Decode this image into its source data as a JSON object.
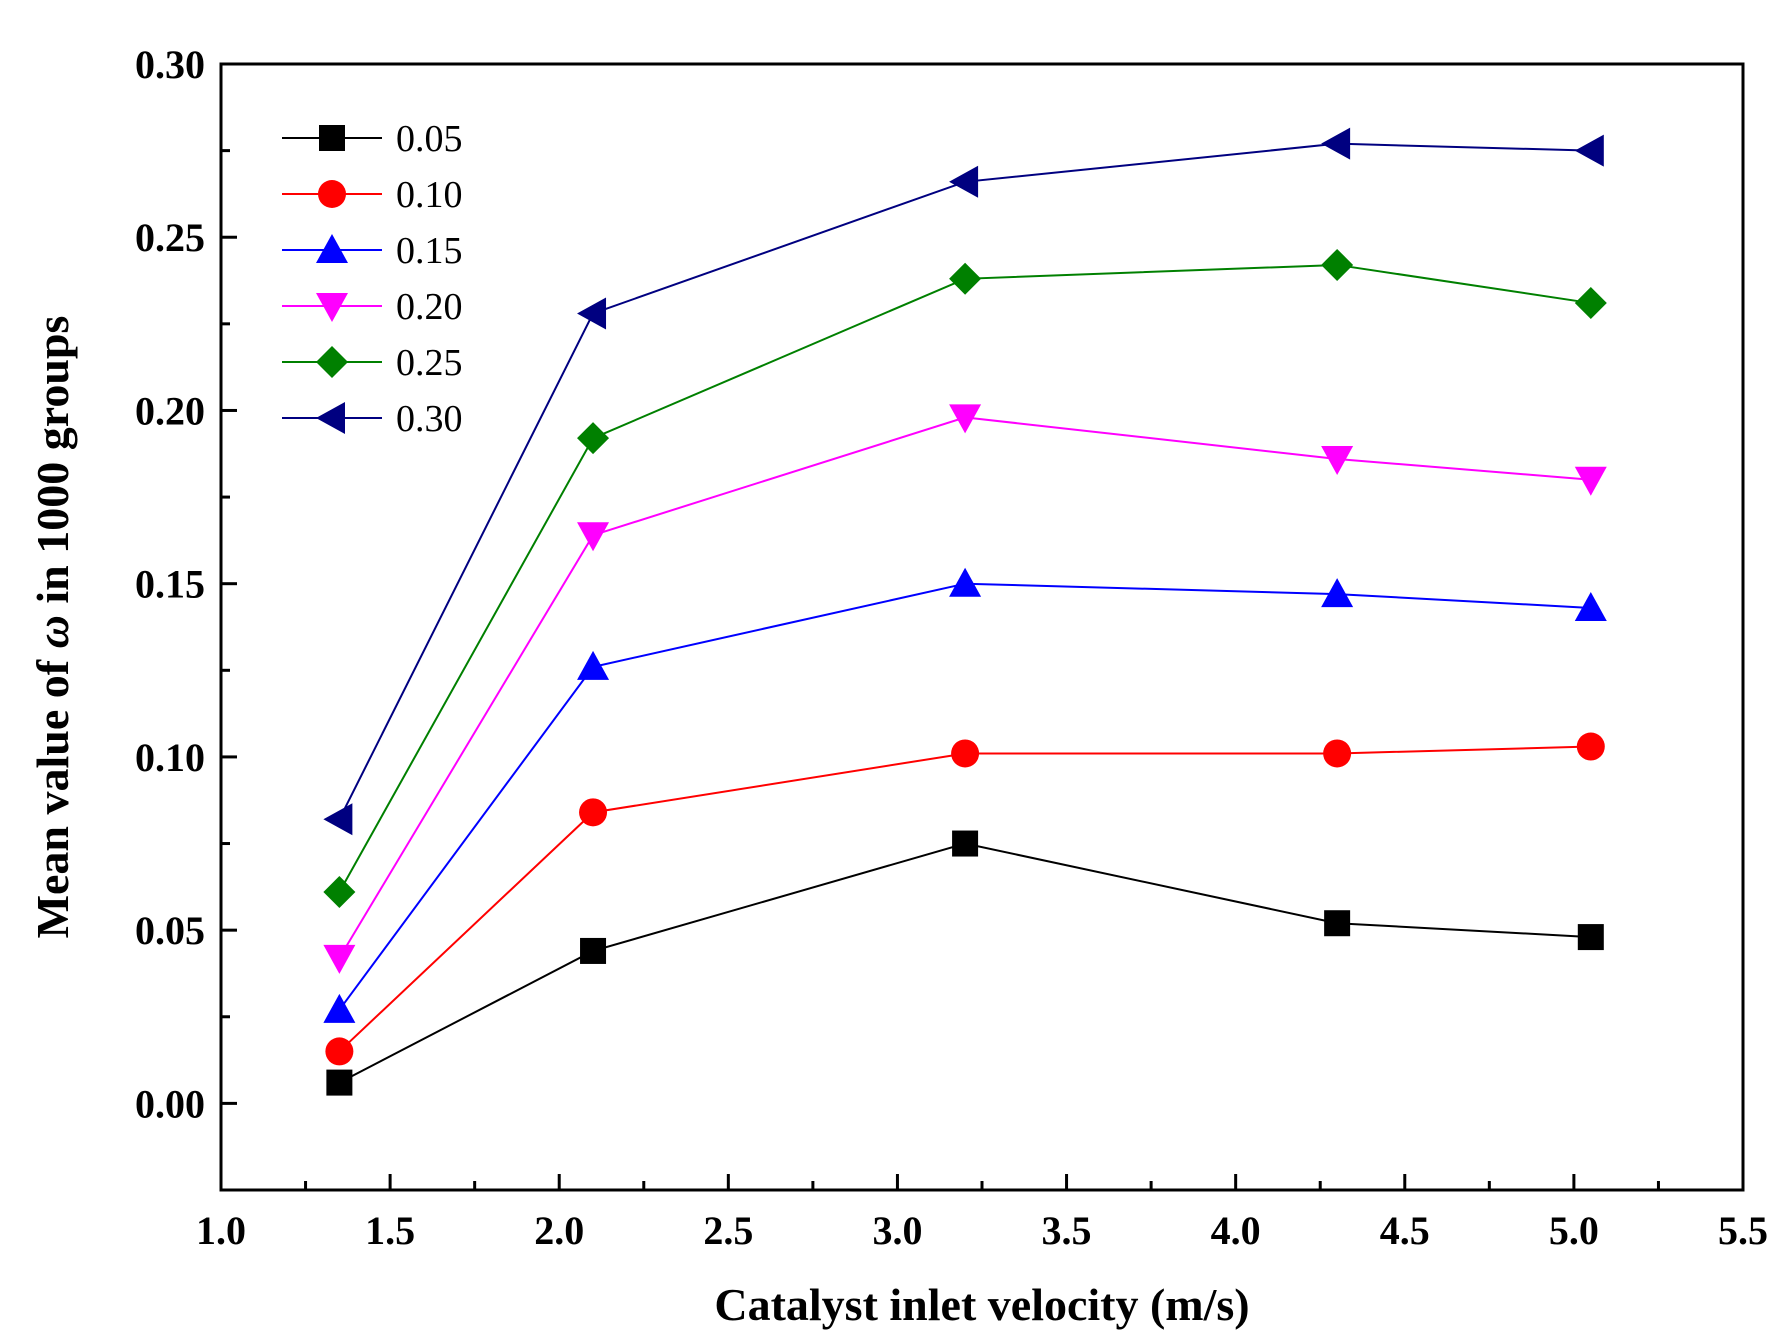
{
  "chart_data": {
    "type": "line",
    "title": "",
    "xlabel": "Catalyst inlet velocity (m/s)",
    "ylabel_parts": {
      "before": "Mean value of ",
      "symbol": "ω",
      "after": " in 1000 groups"
    },
    "xlim": [
      1.0,
      5.5
    ],
    "ylim": [
      -0.025,
      0.3
    ],
    "x_ticks": [
      1.0,
      1.5,
      2.0,
      2.5,
      3.0,
      3.5,
      4.0,
      4.5,
      5.0,
      5.5
    ],
    "x_tick_labels": [
      "1.0",
      "1.5",
      "2.0",
      "2.5",
      "3.0",
      "3.5",
      "4.0",
      "4.5",
      "5.0",
      "5.5"
    ],
    "y_ticks": [
      0.0,
      0.05,
      0.1,
      0.15,
      0.2,
      0.25,
      0.3
    ],
    "y_tick_labels": [
      "0.00",
      "0.05",
      "0.10",
      "0.15",
      "0.20",
      "0.25",
      "0.30"
    ],
    "grid": false,
    "legend_position": "top-left",
    "x": [
      1.35,
      2.1,
      3.2,
      4.3,
      5.05
    ],
    "series": [
      {
        "name": "0.05",
        "color": "#000000",
        "marker": "square",
        "values": [
          0.006,
          0.044,
          0.075,
          0.052,
          0.048
        ]
      },
      {
        "name": "0.10",
        "color": "#ff0000",
        "marker": "circle",
        "values": [
          0.015,
          0.084,
          0.101,
          0.101,
          0.103
        ]
      },
      {
        "name": "0.15",
        "color": "#0000ff",
        "marker": "triangle-up",
        "values": [
          0.027,
          0.126,
          0.15,
          0.147,
          0.143
        ]
      },
      {
        "name": "0.20",
        "color": "#ff00ff",
        "marker": "triangle-down",
        "values": [
          0.042,
          0.164,
          0.198,
          0.186,
          0.18
        ]
      },
      {
        "name": "0.25",
        "color": "#008000",
        "marker": "diamond",
        "values": [
          0.061,
          0.192,
          0.238,
          0.242,
          0.231
        ]
      },
      {
        "name": "0.30",
        "color": "#000080",
        "marker": "triangle-left",
        "values": [
          0.082,
          0.228,
          0.266,
          0.277,
          0.275
        ]
      }
    ]
  }
}
